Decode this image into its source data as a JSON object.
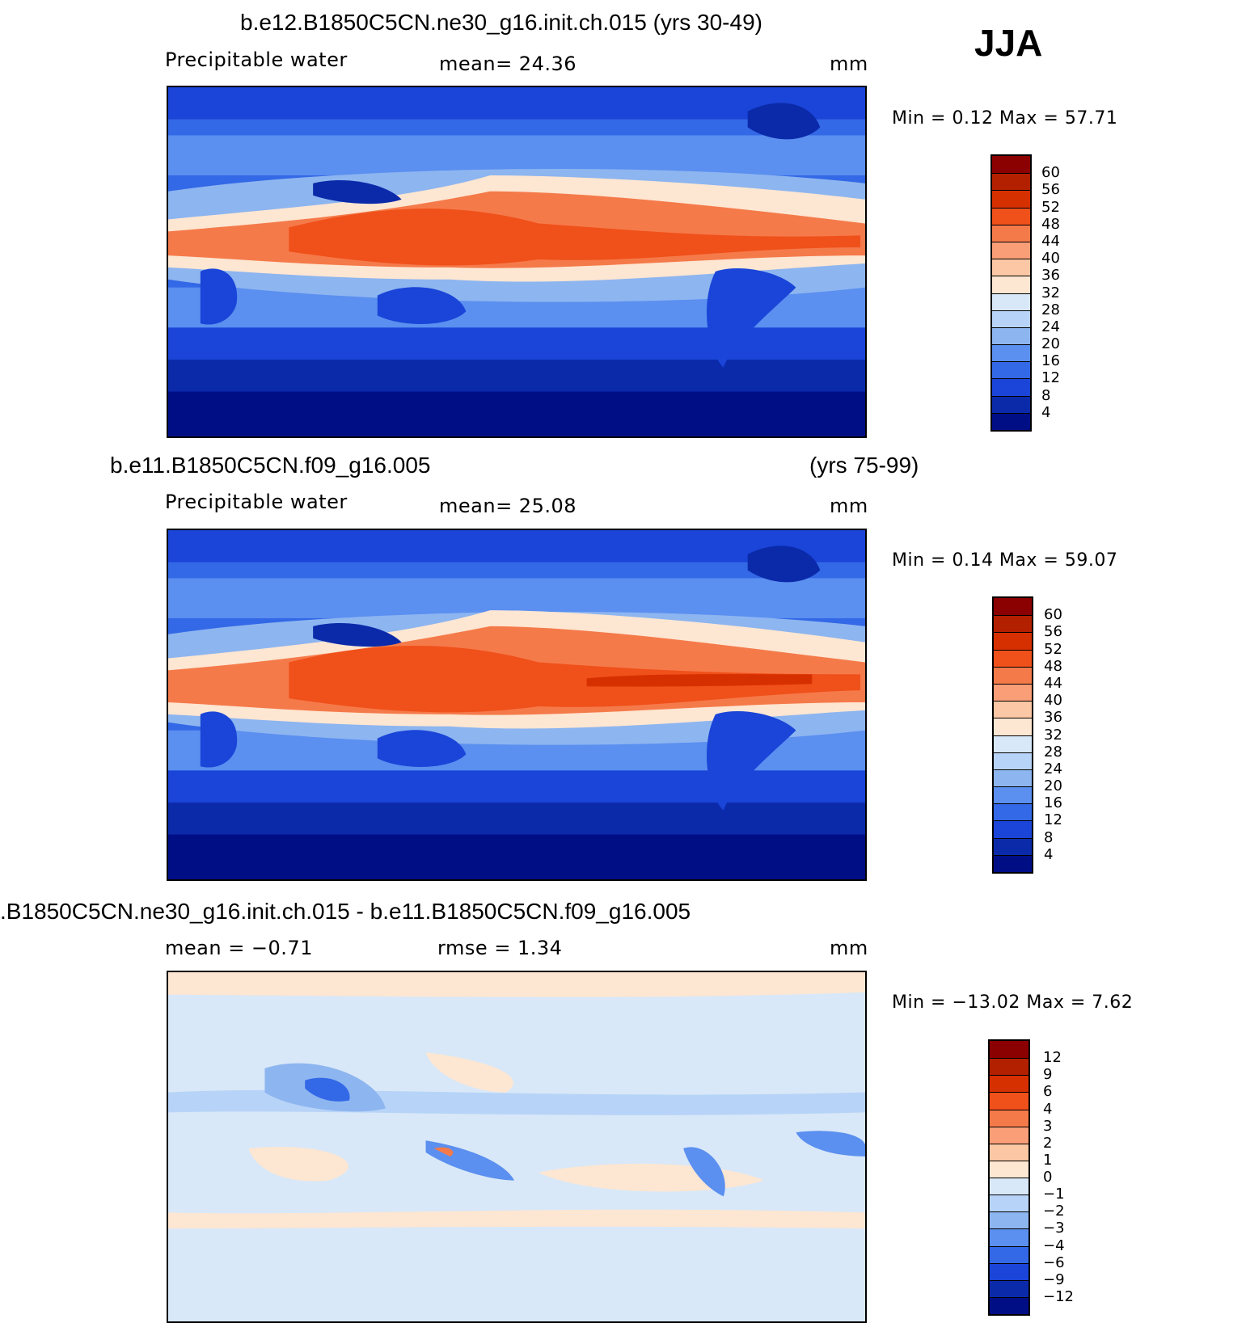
{
  "season": "JJA",
  "panels": [
    {
      "title": "b.e12.B1850C5CN.ne30_g16.init.ch.015 (yrs 30-49)",
      "left_label": "Precipitable  water",
      "center_label": "mean=   24.36",
      "right_label": "mm",
      "minmax": "Min  =     0.12  Max  =    57.71",
      "colorbar": {
        "colors": [
          "#8b0000",
          "#b22000",
          "#d73000",
          "#f0501a",
          "#f57a4a",
          "#fa9e78",
          "#fcc7a4",
          "#fde6d2",
          "#d8e8f8",
          "#b7d3f7",
          "#8db5f0",
          "#5b8ff0",
          "#3368e6",
          "#1a45d8",
          "#0b2aaa",
          "#000e86"
        ],
        "labels": [
          "60",
          "56",
          "52",
          "48",
          "44",
          "40",
          "36",
          "32",
          "28",
          "24",
          "20",
          "16",
          "12",
          "8",
          "4"
        ]
      }
    },
    {
      "title_left": "b.e11.B1850C5CN.f09_g16.005",
      "title_right": "(yrs 75-99)",
      "left_label": "Precipitable  water",
      "center_label": "mean=   25.08",
      "right_label": "mm",
      "minmax": "Min  =     0.14  Max  =    59.07",
      "colorbar": {
        "colors": [
          "#8b0000",
          "#b22000",
          "#d73000",
          "#f0501a",
          "#f57a4a",
          "#fa9e78",
          "#fcc7a4",
          "#fde6d2",
          "#d8e8f8",
          "#b7d3f7",
          "#8db5f0",
          "#5b8ff0",
          "#3368e6",
          "#1a45d8",
          "#0b2aaa",
          "#000e86"
        ],
        "labels": [
          "60",
          "56",
          "52",
          "48",
          "44",
          "40",
          "36",
          "32",
          "28",
          "24",
          "20",
          "16",
          "12",
          "8",
          "4"
        ]
      }
    },
    {
      "title": ".B1850C5CN.ne30_g16.init.ch.015 - b.e11.B1850C5CN.f09_g16.005",
      "left_label": "mean  =    −0.71",
      "center_label": "rmse  =     1.34",
      "right_label": "mm",
      "minmax": "Min  =  −13.02  Max  =     7.62",
      "colorbar": {
        "colors": [
          "#8b0000",
          "#b22000",
          "#d73000",
          "#f0501a",
          "#f57a4a",
          "#fa9e78",
          "#fcc7a4",
          "#fde6d2",
          "#d8e8f8",
          "#b7d3f7",
          "#8db5f0",
          "#5b8ff0",
          "#3368e6",
          "#1a45d8",
          "#0b2aaa",
          "#000e86"
        ],
        "labels": [
          "12",
          "9",
          "6",
          "4",
          "3",
          "2",
          "1",
          "0",
          "−1",
          "−2",
          "−3",
          "−4",
          "−6",
          "−9",
          "−12"
        ]
      }
    }
  ]
}
